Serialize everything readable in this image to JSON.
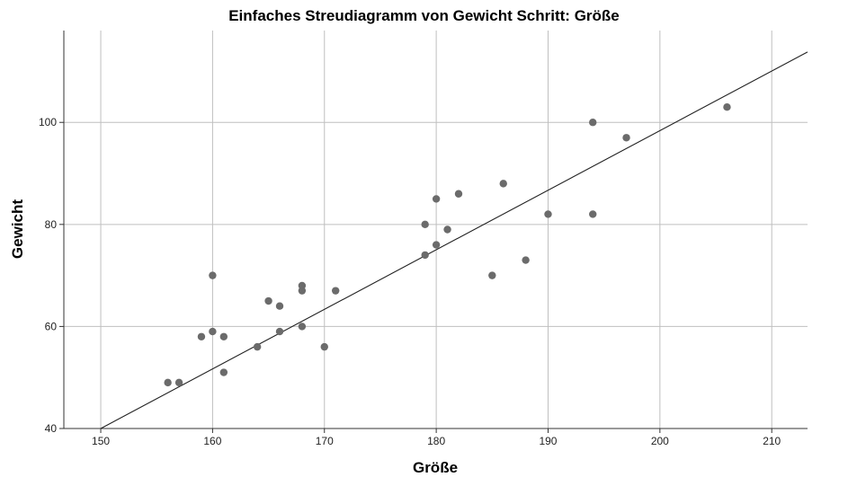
{
  "chart_data": {
    "type": "scatter",
    "title": "Einfaches Streudiagramm  von Gewicht Schritt: Größe",
    "xlabel": "Größe",
    "ylabel": "Gewicht",
    "xlim": [
      146.7,
      213.2
    ],
    "ylim": [
      40,
      118
    ],
    "xticks": [
      150,
      160,
      170,
      180,
      190,
      200,
      210
    ],
    "yticks": [
      40,
      60,
      80,
      100
    ],
    "grid": true,
    "point_color": "#6b6b6b",
    "line_color": "#222222",
    "grid_color": "#bfbfbf",
    "points": [
      {
        "x": 156,
        "y": 49
      },
      {
        "x": 157,
        "y": 49
      },
      {
        "x": 159,
        "y": 58
      },
      {
        "x": 160,
        "y": 59
      },
      {
        "x": 160,
        "y": 70
      },
      {
        "x": 161,
        "y": 58
      },
      {
        "x": 161,
        "y": 51
      },
      {
        "x": 164,
        "y": 56
      },
      {
        "x": 165,
        "y": 65
      },
      {
        "x": 166,
        "y": 64
      },
      {
        "x": 166,
        "y": 59
      },
      {
        "x": 168,
        "y": 68
      },
      {
        "x": 168,
        "y": 67
      },
      {
        "x": 168,
        "y": 60
      },
      {
        "x": 170,
        "y": 56
      },
      {
        "x": 171,
        "y": 67
      },
      {
        "x": 179,
        "y": 80
      },
      {
        "x": 179,
        "y": 74
      },
      {
        "x": 180,
        "y": 85
      },
      {
        "x": 180,
        "y": 76
      },
      {
        "x": 181,
        "y": 79
      },
      {
        "x": 182,
        "y": 86
      },
      {
        "x": 185,
        "y": 70
      },
      {
        "x": 186,
        "y": 88
      },
      {
        "x": 188,
        "y": 73
      },
      {
        "x": 190,
        "y": 82
      },
      {
        "x": 194,
        "y": 100
      },
      {
        "x": 194,
        "y": 82
      },
      {
        "x": 197,
        "y": 97
      },
      {
        "x": 206,
        "y": 103
      }
    ],
    "fit_line": {
      "x": [
        150,
        213.2
      ],
      "y": [
        40,
        113.8
      ]
    }
  }
}
